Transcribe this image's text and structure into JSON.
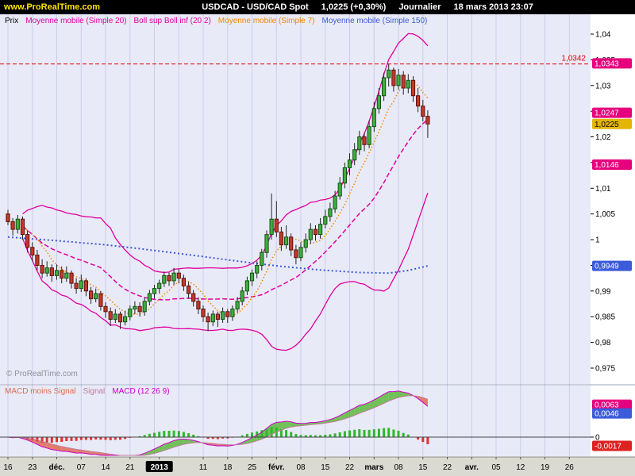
{
  "titlebar": {
    "site": "www.ProRealTime.com",
    "instrument": "USDCAD - USD/CAD Spot",
    "last_price": "1,0225 (+0,30%)",
    "timeframe": "Journalier",
    "datetime": "18 mars 2013 23:07"
  },
  "price_panel": {
    "legend": [
      {
        "label": "Prix",
        "color": "#000000"
      },
      {
        "label": "Moyenne mobile (Simple 20)",
        "color": "#e000a0"
      },
      {
        "label": "Boll sup Boll inf (20 2)",
        "color": "#e000a0"
      },
      {
        "label": "Moyenne mobile (Simple 7)",
        "color": "#f08800"
      },
      {
        "label": "Moyenne mobile (Simple 150)",
        "color": "#3b5bdb"
      }
    ],
    "watermark": "© ProRealTime.com",
    "level_line": {
      "label": "1,0342",
      "value": 1.0342,
      "color": "#e00000"
    },
    "axis_ticks": [
      {
        "label": "1,04",
        "value": 1.04
      },
      {
        "label": "1,035",
        "value": 1.035
      },
      {
        "label": "1,03",
        "value": 1.03
      },
      {
        "label": "1,025",
        "value": 1.025
      },
      {
        "label": "1,02",
        "value": 1.02
      },
      {
        "label": "1,015",
        "value": 1.015
      },
      {
        "label": "1,01",
        "value": 1.01
      },
      {
        "label": "1,005",
        "value": 1.005
      },
      {
        "label": "1",
        "value": 1.0
      },
      {
        "label": "0,995",
        "value": 0.995
      },
      {
        "label": "0,99",
        "value": 0.99
      },
      {
        "label": "0,985",
        "value": 0.985
      },
      {
        "label": "0,98",
        "value": 0.98
      },
      {
        "label": "0,975",
        "value": 0.975
      }
    ],
    "axis_boxes": [
      {
        "label": "1,0343",
        "value": 1.0343,
        "bg": "#e6007e",
        "fg": "#ffffff"
      },
      {
        "label": "1,0247",
        "value": 1.0247,
        "bg": "#e6007e",
        "fg": "#ffffff"
      },
      {
        "label": "1,0225",
        "value": 1.0225,
        "bg": "#e3b505",
        "fg": "#000000"
      },
      {
        "label": "1,0146",
        "value": 1.0146,
        "bg": "#e6007e",
        "fg": "#ffffff"
      },
      {
        "label": "0,9949",
        "value": 0.9949,
        "bg": "#3b5bdb",
        "fg": "#ffffff"
      }
    ]
  },
  "macd_panel": {
    "legend": [
      {
        "label": "MACD moins Signal",
        "color": "#e06a52"
      },
      {
        "label": "Signal",
        "color": "#c07d9a"
      },
      {
        "label": "MACD (12 26 9)",
        "color": "#cc00cc"
      }
    ],
    "zero_label": "0",
    "axis_boxes": [
      {
        "label": "0,0063",
        "value": 0.0063,
        "bg": "#e6007e",
        "fg": "#ffffff"
      },
      {
        "label": "0,0046",
        "value": 0.0046,
        "bg": "#3b5bdb",
        "fg": "#ffffff"
      },
      {
        "label": "-0,0017",
        "value": -0.0017,
        "bg": "#dd2222",
        "fg": "#ffffff"
      }
    ]
  },
  "time_axis": {
    "labels": [
      {
        "label": "16",
        "i": 0
      },
      {
        "label": "23",
        "i": 5
      },
      {
        "label": "déc.",
        "i": 10,
        "bold": true
      },
      {
        "label": "07",
        "i": 15
      },
      {
        "label": "14",
        "i": 20
      },
      {
        "label": "21",
        "i": 25
      },
      {
        "label": "2013",
        "i": 31,
        "box": true
      },
      {
        "label": "11",
        "i": 40
      },
      {
        "label": "18",
        "i": 45
      },
      {
        "label": "25",
        "i": 50
      },
      {
        "label": "févr.",
        "i": 55,
        "bold": true
      },
      {
        "label": "08",
        "i": 60
      },
      {
        "label": "15",
        "i": 65
      },
      {
        "label": "22",
        "i": 70
      },
      {
        "label": "mars",
        "i": 75,
        "bold": true
      },
      {
        "label": "08",
        "i": 80
      },
      {
        "label": "15",
        "i": 85
      },
      {
        "label": "22",
        "i": 90
      },
      {
        "label": "avr.",
        "i": 95,
        "bold": true
      },
      {
        "label": "05",
        "i": 100
      },
      {
        "label": "12",
        "i": 105
      },
      {
        "label": "19",
        "i": 110
      },
      {
        "label": "26",
        "i": 115
      }
    ]
  },
  "chart_data": {
    "type": "candlestick+macd",
    "title": "USDCAD - USD/CAD Spot",
    "timeframe": "Journalier (daily)",
    "last_close": 1.0225,
    "change_pct": 0.3,
    "ylim": [
      0.975,
      1.0425
    ],
    "macd_params": [
      12,
      26,
      9
    ],
    "colors": {
      "up": "#3fae3f",
      "down": "#c23a2b",
      "up_stroke": "#145214",
      "down_stroke": "#5e120b",
      "boll": "#e000a0",
      "sma20": "#e000a0",
      "sma7": "#f08800",
      "sma150": "#3b5bdb",
      "hist_up": "#2eb82e",
      "hist_down": "#e03030",
      "fill_up": "#5cb83c",
      "fill_down": "#e06a52"
    },
    "candles": [
      [
        1.005,
        1.0058,
        1.0028,
        1.0035
      ],
      [
        1.0035,
        1.0042,
        1.0008,
        1.002
      ],
      [
        1.002,
        1.0048,
        1.0012,
        1.004
      ],
      [
        1.004,
        1.0045,
        1.0,
        1.001
      ],
      [
        1.001,
        1.0018,
        0.9975,
        0.9985
      ],
      [
        0.9985,
        0.9995,
        0.9958,
        0.997
      ],
      [
        0.997,
        0.998,
        0.994,
        0.995
      ],
      [
        0.995,
        0.9962,
        0.9925,
        0.9935
      ],
      [
        0.9935,
        0.9958,
        0.9928,
        0.9945
      ],
      [
        0.9945,
        0.9952,
        0.9918,
        0.993
      ],
      [
        0.993,
        0.9952,
        0.9922,
        0.994
      ],
      [
        0.994,
        0.9948,
        0.9915,
        0.9925
      ],
      [
        0.9925,
        0.9948,
        0.9918,
        0.9935
      ],
      [
        0.9935,
        0.994,
        0.9905,
        0.9915
      ],
      [
        0.9915,
        0.9925,
        0.9895,
        0.9905
      ],
      [
        0.9905,
        0.9932,
        0.9898,
        0.992
      ],
      [
        0.992,
        0.9925,
        0.989,
        0.99
      ],
      [
        0.99,
        0.9908,
        0.9875,
        0.9885
      ],
      [
        0.9885,
        0.9905,
        0.9878,
        0.9895
      ],
      [
        0.9895,
        0.99,
        0.9862,
        0.987
      ],
      [
        0.987,
        0.9878,
        0.9848,
        0.986
      ],
      [
        0.986,
        0.9868,
        0.9832,
        0.9845
      ],
      [
        0.9845,
        0.9865,
        0.9838,
        0.9855
      ],
      [
        0.9855,
        0.986,
        0.9826,
        0.984
      ],
      [
        0.984,
        0.9862,
        0.9833,
        0.985
      ],
      [
        0.985,
        0.9872,
        0.9843,
        0.9865
      ],
      [
        0.9865,
        0.988,
        0.9855,
        0.987
      ],
      [
        0.987,
        0.9878,
        0.985,
        0.986
      ],
      [
        0.986,
        0.9888,
        0.9852,
        0.988
      ],
      [
        0.988,
        0.9902,
        0.9872,
        0.9895
      ],
      [
        0.9895,
        0.9912,
        0.9885,
        0.9905
      ],
      [
        0.9905,
        0.9922,
        0.9895,
        0.9915
      ],
      [
        0.9915,
        0.9938,
        0.9908,
        0.993
      ],
      [
        0.993,
        0.9936,
        0.991,
        0.992
      ],
      [
        0.992,
        0.9945,
        0.9912,
        0.9935
      ],
      [
        0.9935,
        0.9942,
        0.9915,
        0.9925
      ],
      [
        0.9925,
        0.9932,
        0.99,
        0.991
      ],
      [
        0.991,
        0.9918,
        0.9885,
        0.9895
      ],
      [
        0.9895,
        0.9902,
        0.987,
        0.988
      ],
      [
        0.988,
        0.9888,
        0.9855,
        0.9865
      ],
      [
        0.9865,
        0.9872,
        0.984,
        0.985
      ],
      [
        0.985,
        0.9858,
        0.9822,
        0.984
      ],
      [
        0.984,
        0.9862,
        0.9832,
        0.9855
      ],
      [
        0.9855,
        0.986,
        0.983,
        0.9845
      ],
      [
        0.9845,
        0.9868,
        0.9838,
        0.986
      ],
      [
        0.986,
        0.9865,
        0.9838,
        0.985
      ],
      [
        0.985,
        0.9872,
        0.9842,
        0.9865
      ],
      [
        0.9865,
        0.9888,
        0.9858,
        0.988
      ],
      [
        0.988,
        0.9908,
        0.9872,
        0.99
      ],
      [
        0.99,
        0.9928,
        0.9892,
        0.992
      ],
      [
        0.992,
        0.9942,
        0.991,
        0.9935
      ],
      [
        0.9935,
        0.9958,
        0.9925,
        0.995
      ],
      [
        0.995,
        0.9982,
        0.994,
        0.9975
      ],
      [
        0.9975,
        1.0018,
        0.9965,
        1.001
      ],
      [
        1.001,
        1.009,
        1.0,
        1.004
      ],
      [
        1.004,
        1.0075,
        1.0005,
        1.0015
      ],
      [
        1.0015,
        1.0025,
        0.9978,
        0.999
      ],
      [
        0.999,
        1.0028,
        0.9982,
        1.0005
      ],
      [
        1.0005,
        1.0012,
        0.9968,
        0.998
      ],
      [
        0.998,
        0.999,
        0.9952,
        0.9965
      ],
      [
        0.9965,
        0.9995,
        0.9958,
        0.9985
      ],
      [
        0.9985,
        1.0012,
        0.9975,
        1.0
      ],
      [
        1.0,
        1.0032,
        0.9992,
        1.002
      ],
      [
        1.002,
        1.0028,
        0.9998,
        1.001
      ],
      [
        1.001,
        1.0042,
        1.0002,
        1.003
      ],
      [
        1.003,
        1.0058,
        1.0022,
        1.0045
      ],
      [
        1.0045,
        1.0072,
        1.0035,
        1.006
      ],
      [
        1.006,
        1.0095,
        1.0052,
        1.0085
      ],
      [
        1.0085,
        1.0122,
        1.0078,
        1.011
      ],
      [
        1.011,
        1.015,
        1.01,
        1.014
      ],
      [
        1.014,
        1.0168,
        1.0125,
        1.0155
      ],
      [
        1.0155,
        1.0188,
        1.0145,
        1.0175
      ],
      [
        1.0175,
        1.0212,
        1.0165,
        1.02
      ],
      [
        1.02,
        1.0208,
        1.0172,
        1.0185
      ],
      [
        1.0185,
        1.0232,
        1.0178,
        1.022
      ],
      [
        1.022,
        1.0268,
        1.021,
        1.0255
      ],
      [
        1.0255,
        1.0295,
        1.0245,
        1.028
      ],
      [
        1.028,
        1.0325,
        1.027,
        1.0315
      ],
      [
        1.0315,
        1.0342,
        1.0298,
        1.033
      ],
      [
        1.033,
        1.0335,
        1.0288,
        1.03
      ],
      [
        1.03,
        1.0332,
        1.0292,
        1.032
      ],
      [
        1.032,
        1.0328,
        1.0282,
        1.0295
      ],
      [
        1.0295,
        1.0322,
        1.0285,
        1.031
      ],
      [
        1.031,
        1.0318,
        1.0268,
        1.028
      ],
      [
        1.028,
        1.0295,
        1.0248,
        1.026
      ],
      [
        1.026,
        1.0272,
        1.023,
        1.024
      ],
      [
        1.024,
        1.0252,
        1.0198,
        1.0225
      ]
    ],
    "sma150_points": [
      [
        0,
        1.0005
      ],
      [
        10,
        0.9998
      ],
      [
        20,
        0.999
      ],
      [
        30,
        0.9979
      ],
      [
        40,
        0.9967
      ],
      [
        48,
        0.9957
      ],
      [
        56,
        0.9948
      ],
      [
        64,
        0.9941
      ],
      [
        72,
        0.9936
      ],
      [
        78,
        0.9935
      ],
      [
        82,
        0.994
      ],
      [
        86,
        0.9949
      ]
    ]
  }
}
